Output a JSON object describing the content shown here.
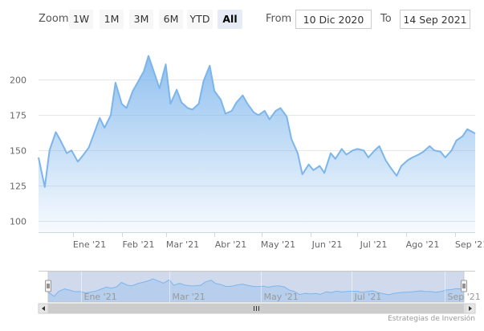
{
  "toolbar": {
    "zoom_label": "Zoom",
    "buttons": [
      "1W",
      "1M",
      "3M",
      "6M",
      "YTD",
      "All"
    ],
    "active_button": "All",
    "from_label": "From",
    "from_value": "10 Dic 2020",
    "to_label": "To",
    "to_value": "14 Sep 2021"
  },
  "credit": "Estrategias de Inversión",
  "colors": {
    "line": "#7cb5ec",
    "navigator_mask": "rgba(102,133,194,0.3)",
    "active_bg": "#e6ebf5"
  },
  "chart_data": {
    "type": "area",
    "title": "",
    "xlabel": "",
    "ylabel": "",
    "ylim": [
      92,
      227
    ],
    "yticks": [
      100,
      125,
      150,
      175,
      200
    ],
    "xticks": [
      {
        "label": "Ene '21",
        "date": "2021-01-01"
      },
      {
        "label": "Feb '21",
        "date": "2021-02-01"
      },
      {
        "label": "Mar '21",
        "date": "2021-03-01"
      },
      {
        "label": "Abr '21",
        "date": "2021-04-01"
      },
      {
        "label": "May '21",
        "date": "2021-05-01"
      },
      {
        "label": "Jun '21",
        "date": "2021-06-01"
      },
      {
        "label": "Jul '21",
        "date": "2021-07-01"
      },
      {
        "label": "Ago '21",
        "date": "2021-08-01"
      },
      {
        "label": "Sep '21",
        "date": "2021-09-01"
      }
    ],
    "navigator_xticks": [
      {
        "label": "Ene '21",
        "date": "2021-01-01"
      },
      {
        "label": "Mar '21",
        "date": "2021-03-01"
      },
      {
        "label": "May '21",
        "date": "2021-05-01"
      },
      {
        "label": "Jul '21",
        "date": "2021-07-01"
      },
      {
        "label": "Sep '21",
        "date": "2021-09-01"
      }
    ],
    "xrange": [
      "2020-12-10",
      "2021-09-14"
    ],
    "series": [
      {
        "dates": [
          "2020-12-10",
          "2020-12-14",
          "2020-12-17",
          "2020-12-21",
          "2020-12-24",
          "2020-12-28",
          "2020-12-31",
          "2021-01-04",
          "2021-01-07",
          "2021-01-11",
          "2021-01-14",
          "2021-01-18",
          "2021-01-21",
          "2021-01-25",
          "2021-01-28",
          "2021-02-01",
          "2021-02-04",
          "2021-02-08",
          "2021-02-11",
          "2021-02-15",
          "2021-02-18",
          "2021-02-22",
          "2021-02-25",
          "2021-03-01",
          "2021-03-04",
          "2021-03-08",
          "2021-03-11",
          "2021-03-15",
          "2021-03-18",
          "2021-03-22",
          "2021-03-25",
          "2021-03-29",
          "2021-04-01",
          "2021-04-05",
          "2021-04-08",
          "2021-04-12",
          "2021-04-15",
          "2021-04-19",
          "2021-04-22",
          "2021-04-26",
          "2021-04-29",
          "2021-05-03",
          "2021-05-06",
          "2021-05-10",
          "2021-05-13",
          "2021-05-17",
          "2021-05-20",
          "2021-05-24",
          "2021-05-27",
          "2021-05-31",
          "2021-06-03",
          "2021-06-07",
          "2021-06-10",
          "2021-06-14",
          "2021-06-17",
          "2021-06-21",
          "2021-06-24",
          "2021-06-28",
          "2021-07-01",
          "2021-07-05",
          "2021-07-08",
          "2021-07-12",
          "2021-07-15",
          "2021-07-19",
          "2021-07-22",
          "2021-07-26",
          "2021-07-29",
          "2021-08-02",
          "2021-08-05",
          "2021-08-09",
          "2021-08-12",
          "2021-08-16",
          "2021-08-19",
          "2021-08-23",
          "2021-08-26",
          "2021-08-30",
          "2021-09-02",
          "2021-09-06",
          "2021-09-09",
          "2021-09-14"
        ],
        "values": [
          145,
          124,
          150,
          163,
          157,
          148,
          150,
          142,
          146,
          152,
          161,
          173,
          166,
          175,
          198,
          183,
          180,
          192,
          198,
          206,
          217,
          204,
          194,
          211,
          183,
          193,
          184,
          180,
          179,
          183,
          199,
          210,
          192,
          186,
          176,
          178,
          184,
          189,
          183,
          177,
          175,
          178,
          172,
          178,
          180,
          174,
          158,
          148,
          133,
          140,
          136,
          139,
          134,
          148,
          144,
          151,
          147,
          150,
          151,
          150,
          145,
          150,
          153,
          143,
          138,
          132,
          139,
          143,
          145,
          147,
          149,
          153,
          150,
          149,
          145,
          150,
          157,
          160,
          165,
          162
        ]
      }
    ]
  }
}
